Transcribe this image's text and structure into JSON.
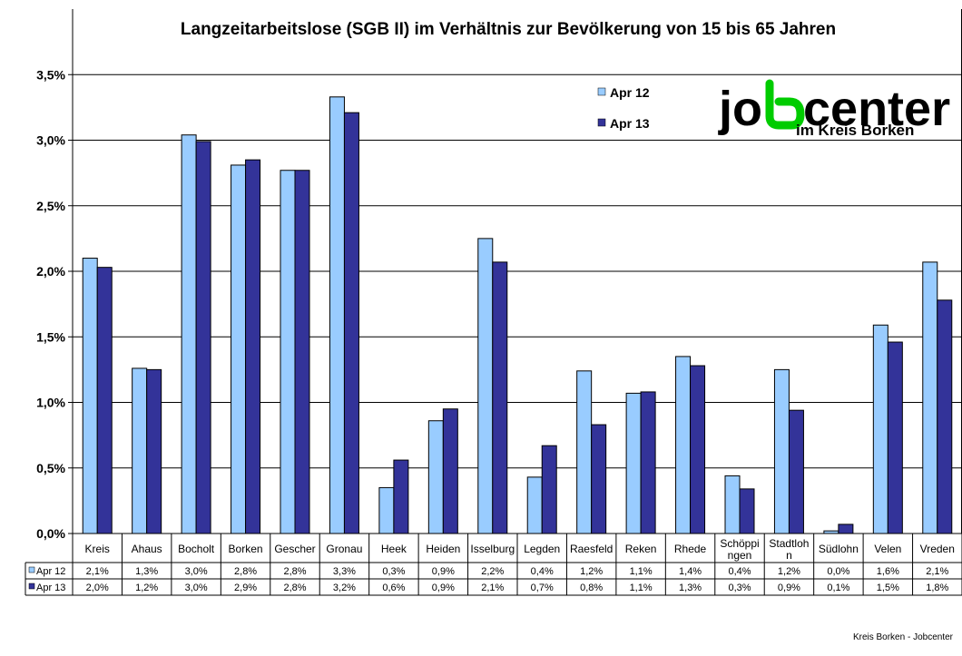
{
  "chart_data": {
    "type": "bar",
    "title": "Langzeitarbeitslose (SGB II) im Verhältnis zur Bevölkerung von 15 bis 65 Jahren",
    "categories": [
      "Kreis",
      "Ahaus",
      "Bocholt",
      "Borken",
      "Gescher",
      "Gronau",
      "Heek",
      "Heiden",
      "Isselburg",
      "Legden",
      "Raesfeld",
      "Reken",
      "Rhede",
      "Schöppingen",
      "Stadtlohn",
      "Südlohn",
      "Velen",
      "Vreden"
    ],
    "category_lines": [
      [
        "Kreis"
      ],
      [
        "Ahaus"
      ],
      [
        "Bocholt"
      ],
      [
        "Borken"
      ],
      [
        "Gescher"
      ],
      [
        "Gronau"
      ],
      [
        "Heek"
      ],
      [
        "Heiden"
      ],
      [
        "Isselburg"
      ],
      [
        "Legden"
      ],
      [
        "Raesfeld"
      ],
      [
        "Reken"
      ],
      [
        "Rhede"
      ],
      [
        "Schöppi",
        "ngen"
      ],
      [
        "Stadtloh",
        "n"
      ],
      [
        "Südlohn"
      ],
      [
        "Velen"
      ],
      [
        "Vreden"
      ]
    ],
    "series": [
      {
        "name": "Apr 12",
        "color": "#99ccff",
        "values": [
          2.1,
          1.26,
          3.04,
          2.81,
          2.77,
          3.33,
          0.35,
          0.86,
          2.25,
          0.43,
          1.24,
          1.07,
          1.35,
          0.44,
          1.25,
          0.02,
          1.59,
          2.07
        ],
        "labels": [
          "2,1%",
          "1,3%",
          "3,0%",
          "2,8%",
          "2,8%",
          "3,3%",
          "0,3%",
          "0,9%",
          "2,2%",
          "0,4%",
          "1,2%",
          "1,1%",
          "1,4%",
          "0,4%",
          "1,2%",
          "0,0%",
          "1,6%",
          "2,1%"
        ]
      },
      {
        "name": "Apr 13",
        "color": "#333399",
        "values": [
          2.03,
          1.25,
          2.99,
          2.85,
          2.77,
          3.21,
          0.56,
          0.95,
          2.07,
          0.67,
          0.83,
          1.08,
          1.28,
          0.34,
          0.94,
          0.07,
          1.46,
          1.78
        ],
        "labels": [
          "2,0%",
          "1,2%",
          "3,0%",
          "2,9%",
          "2,8%",
          "3,2%",
          "0,6%",
          "0,9%",
          "2,1%",
          "0,7%",
          "0,8%",
          "1,1%",
          "1,3%",
          "0,3%",
          "0,9%",
          "0,1%",
          "1,5%",
          "1,8%"
        ]
      }
    ],
    "ylim": [
      0,
      4.0
    ],
    "yticks": [
      0,
      0.5,
      1.0,
      1.5,
      2.0,
      2.5,
      3.0,
      3.5
    ],
    "ytick_labels": [
      "0,0%",
      "0,5%",
      "1,0%",
      "1,5%",
      "2,0%",
      "2,5%",
      "3,0%",
      "3,5%"
    ],
    "grid": true,
    "legend_position": "top-right",
    "data_table": true
  },
  "logo": {
    "main_before": "jo",
    "main_after": "center",
    "sub": "im Kreis Borken",
    "accent": "#00cc00"
  },
  "footer": "Kreis Borken - Jobcenter"
}
